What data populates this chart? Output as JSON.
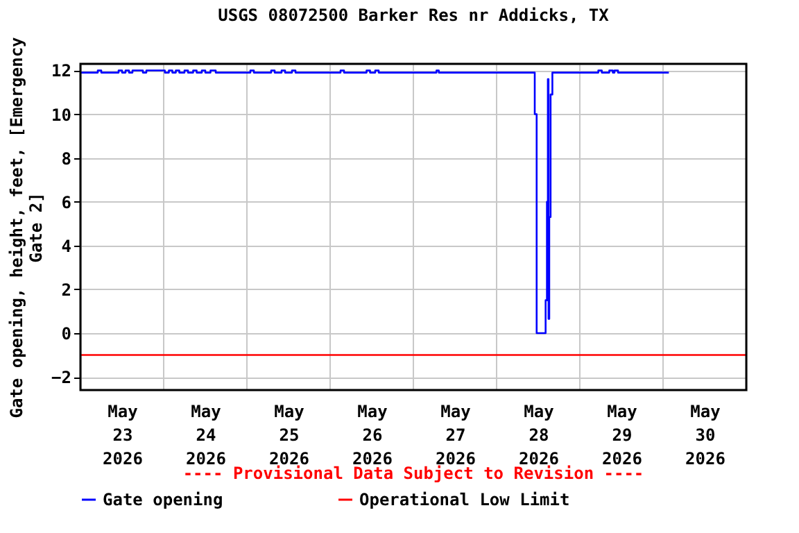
{
  "chart_data": {
    "type": "line",
    "title": "USGS 08072500 Barker Res nr Addicks, TX",
    "ylabel": "Gate opening, height, feet, [Emergency Gate 2]",
    "annotations": [
      "---- Provisional Data Subject to Revision ----"
    ],
    "xlim": [
      "2026-05-23T00:00",
      "2026-05-31T00:00"
    ],
    "xticks": [
      {
        "value": "2026-05-23T12:00",
        "label": "May 23 2026"
      },
      {
        "value": "2026-05-24T12:00",
        "label": "May 24 2026"
      },
      {
        "value": "2026-05-25T12:00",
        "label": "May 25 2026"
      },
      {
        "value": "2026-05-26T12:00",
        "label": "May 26 2026"
      },
      {
        "value": "2026-05-27T12:00",
        "label": "May 27 2026"
      },
      {
        "value": "2026-05-28T12:00",
        "label": "May 28 2026"
      },
      {
        "value": "2026-05-29T12:00",
        "label": "May 29 2026"
      },
      {
        "value": "2026-05-30T12:00",
        "label": "May 30 2026"
      },
      {
        "value": "2026-05-24T00:00",
        "label": null
      },
      {
        "value": "2026-05-25T00:00",
        "label": null
      },
      {
        "value": "2026-05-26T00:00",
        "label": null
      },
      {
        "value": "2026-05-27T00:00",
        "label": null
      },
      {
        "value": "2026-05-28T00:00",
        "label": null
      },
      {
        "value": "2026-05-29T00:00",
        "label": null
      },
      {
        "value": "2026-05-30T00:00",
        "label": null
      }
    ],
    "ylim": [
      -2.6,
      12.3
    ],
    "yticks": [
      -2,
      0,
      2,
      4,
      6,
      8,
      10,
      12
    ],
    "grid": true,
    "legend": "bottom",
    "line_style": "solid",
    "marker": "none",
    "series": [
      {
        "name": "Gate opening",
        "color": "#0000ff",
        "type": "step",
        "x": [
          "2026-05-23T00:00",
          "2026-05-23T05:00",
          "2026-05-23T06:00",
          "2026-05-23T11:00",
          "2026-05-23T12:00",
          "2026-05-23T13:00",
          "2026-05-23T14:00",
          "2026-05-23T15:00",
          "2026-05-23T18:00",
          "2026-05-23T19:00",
          "2026-05-24T00:20",
          "2026-05-24T01:30",
          "2026-05-24T02:30",
          "2026-05-24T03:30",
          "2026-05-24T04:30",
          "2026-05-24T06:00",
          "2026-05-24T07:00",
          "2026-05-24T08:30",
          "2026-05-24T09:30",
          "2026-05-24T11:00",
          "2026-05-24T12:00",
          "2026-05-24T13:30",
          "2026-05-24T15:00",
          "2026-05-25T01:00",
          "2026-05-25T02:00",
          "2026-05-25T07:00",
          "2026-05-25T08:00",
          "2026-05-25T10:00",
          "2026-05-25T11:00",
          "2026-05-25T13:00",
          "2026-05-25T14:00",
          "2026-05-26T03:00",
          "2026-05-26T04:00",
          "2026-05-26T10:30",
          "2026-05-26T11:30",
          "2026-05-26T13:00",
          "2026-05-26T14:00",
          "2026-05-27T06:40",
          "2026-05-27T07:20",
          "2026-05-28T11:00",
          "2026-05-28T11:33",
          "2026-05-28T14:08",
          "2026-05-28T14:31",
          "2026-05-28T14:47",
          "2026-05-28T14:58",
          "2026-05-28T15:11",
          "2026-05-28T15:34",
          "2026-05-28T16:05",
          "2026-05-29T05:20",
          "2026-05-29T06:20",
          "2026-05-29T08:30",
          "2026-05-29T09:30",
          "2026-05-29T10:00",
          "2026-05-29T11:00",
          "2026-05-30T01:40"
        ],
        "values": [
          11.9,
          12.0,
          11.9,
          12.0,
          11.9,
          12.0,
          11.9,
          12.0,
          11.9,
          12.0,
          11.9,
          12.0,
          11.9,
          12.0,
          11.9,
          12.0,
          11.9,
          12.0,
          11.9,
          12.0,
          11.9,
          12.0,
          11.9,
          12.0,
          11.9,
          12.0,
          11.9,
          12.0,
          11.9,
          12.0,
          11.9,
          12.0,
          11.9,
          12.0,
          11.9,
          12.0,
          11.9,
          12.0,
          11.9,
          10.0,
          0.0,
          1.5,
          6.0,
          11.6,
          0.65,
          5.3,
          10.9,
          11.9,
          12.0,
          11.9,
          12.0,
          11.9,
          12.0,
          11.9,
          11.9
        ]
      },
      {
        "name": "Operational Low Limit",
        "color": "#ff0000",
        "type": "line",
        "x": [
          "2026-05-23T00:00",
          "2026-05-31T00:00"
        ],
        "values": [
          -1,
          -1
        ]
      }
    ]
  }
}
